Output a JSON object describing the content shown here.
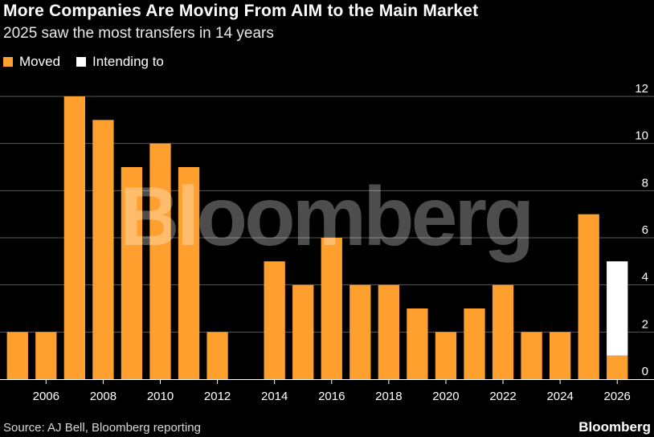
{
  "title": "More Companies Are Moving From AIM to the Main Market",
  "subtitle": "2025 saw the most transfers in 14 years",
  "legend": [
    {
      "label": "Moved",
      "color": "#ff9f2e"
    },
    {
      "label": "Intending to",
      "color": "#ffffff"
    }
  ],
  "watermark": "Bloomberg",
  "source": "Source: AJ Bell, Bloomberg reporting",
  "brand": "Bloomberg",
  "chart_data": {
    "type": "bar",
    "stacked": true,
    "categories": [
      "2005",
      "2006",
      "2007",
      "2008",
      "2009",
      "2010",
      "2011",
      "2012",
      "2013",
      "2014",
      "2015",
      "2016",
      "2017",
      "2018",
      "2019",
      "2020",
      "2021",
      "2022",
      "2023",
      "2024",
      "2025",
      "2026"
    ],
    "series": [
      {
        "name": "Moved",
        "color": "#ff9f2e",
        "values": [
          2,
          2,
          12,
          11,
          9,
          10,
          9,
          2,
          0,
          5,
          4,
          6,
          4,
          4,
          3,
          2,
          3,
          4,
          2,
          2,
          7,
          1
        ]
      },
      {
        "name": "Intending to",
        "color": "#ffffff",
        "values": [
          0,
          0,
          0,
          0,
          0,
          0,
          0,
          0,
          0,
          0,
          0,
          0,
          0,
          0,
          0,
          0,
          0,
          0,
          0,
          0,
          0,
          4
        ]
      }
    ],
    "x_tick_labels": [
      "2006",
      "2008",
      "2010",
      "2012",
      "2014",
      "2016",
      "2018",
      "2020",
      "2022",
      "2024",
      "2026"
    ],
    "y_ticks": [
      0,
      2,
      4,
      6,
      8,
      10,
      12
    ],
    "ylim": [
      0,
      12
    ],
    "gridlines": true,
    "y_axis_side": "right"
  }
}
